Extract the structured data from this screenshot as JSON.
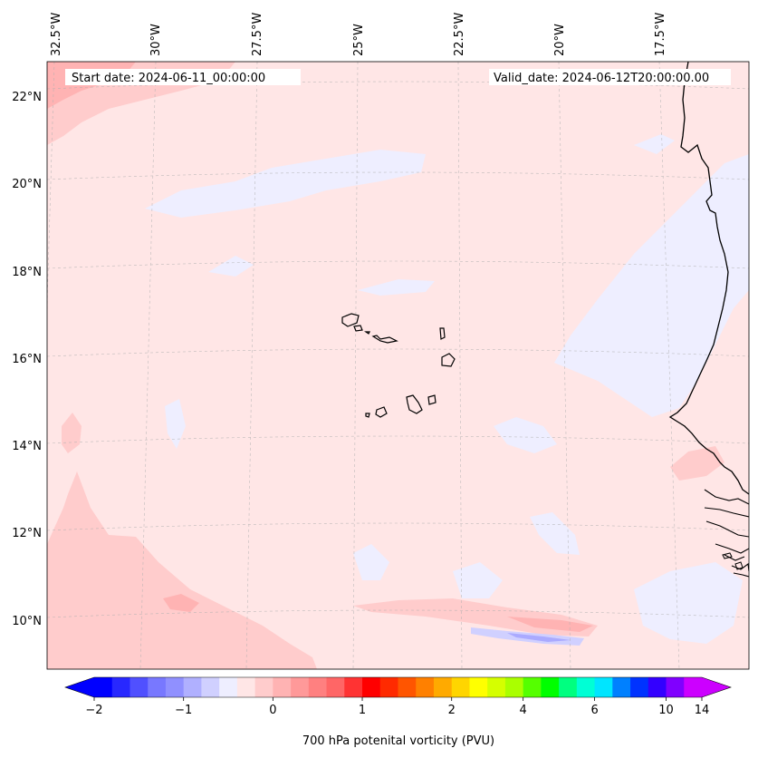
{
  "header": {
    "start_date": "Start date: 2024-06-11_00:00:00",
    "valid_date": "Valid_date: 2024-06-12T20:00:00.00"
  },
  "map": {
    "projection": "Lambert conformal",
    "extent": {
      "lon_min": -33.0,
      "lon_max": -15.3,
      "lat_min": 8.8,
      "lat_max": 22.8
    },
    "gridlines": true,
    "coastlines": true,
    "field_colors": {
      "background": "#ffe6e6",
      "low_blue": "#eeeeff",
      "medium_pink": "#ffcccc",
      "strong_pink": "#ffb3b3",
      "strong_red": "#ff8080",
      "blue_streak": "#aaaaff"
    }
  },
  "top_labels": [
    {
      "text": "32.5°W",
      "lon": -32.5
    },
    {
      "text": "30°W",
      "lon": -30.0
    },
    {
      "text": "27.5°W",
      "lon": -27.5
    },
    {
      "text": "25°W",
      "lon": -25.0
    },
    {
      "text": "22.5°W",
      "lon": -22.5
    },
    {
      "text": "20°W",
      "lon": -20.0
    },
    {
      "text": "17.5°W",
      "lon": -17.5
    }
  ],
  "left_labels": [
    {
      "text": "22°N",
      "lat": 22
    },
    {
      "text": "20°N",
      "lat": 20
    },
    {
      "text": "18°N",
      "lat": 18
    },
    {
      "text": "16°N",
      "lat": 16
    },
    {
      "text": "14°N",
      "lat": 14
    },
    {
      "text": "12°N",
      "lat": 12
    },
    {
      "text": "10°N",
      "lat": 10
    }
  ],
  "colorbar": {
    "label": "700 hPa potenital vorticity (PVU)",
    "extend": "both",
    "colors": [
      "#0000ff",
      "#2828ff",
      "#5050ff",
      "#7878ff",
      "#9090ff",
      "#b0b0ff",
      "#d0d0ff",
      "#eeeeff",
      "#ffe6e6",
      "#ffcccc",
      "#ffb3b3",
      "#ff9999",
      "#ff8080",
      "#ff6666",
      "#ff3333",
      "#ff0000",
      "#ff2a00",
      "#ff5500",
      "#ff8000",
      "#ffaa00",
      "#ffd500",
      "#ffff00",
      "#d5ff00",
      "#aaff00",
      "#55ff00",
      "#00ff00",
      "#00ff80",
      "#00ffd5",
      "#00e5ff",
      "#0080ff",
      "#0033ff",
      "#3300ff",
      "#8000ff",
      "#cc00ff"
    ],
    "under_color": "#0000ff",
    "over_color": "#cc00ff",
    "ticks": [
      {
        "text": "−2",
        "value": -2
      },
      {
        "text": "−1",
        "value": -1
      },
      {
        "text": "0",
        "value": 0
      },
      {
        "text": "1",
        "value": 1
      },
      {
        "text": "2",
        "value": 2
      },
      {
        "text": "4",
        "value": 4
      },
      {
        "text": "6",
        "value": 6
      },
      {
        "text": "10",
        "value": 10
      },
      {
        "text": "14",
        "value": 14
      }
    ]
  }
}
